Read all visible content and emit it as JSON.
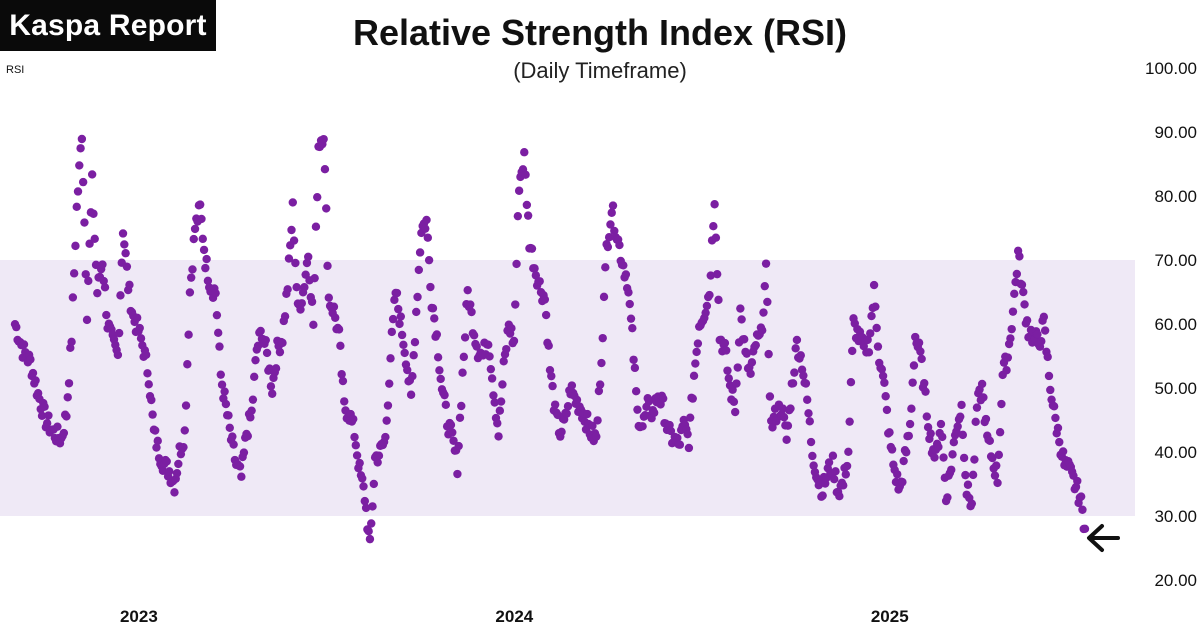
{
  "brand": {
    "label": "Kaspa Report"
  },
  "chart_data": {
    "type": "scatter",
    "title": "Relative Strength Index (RSI)",
    "subtitle": "(Daily Timeframe)",
    "ylabel": "RSI",
    "ylim": [
      20,
      100
    ],
    "yticks": [
      "20.00",
      "30.00",
      "40.00",
      "50.00",
      "60.00",
      "70.00",
      "80.00",
      "90.00",
      "100.00"
    ],
    "x_start_year": 2022.67,
    "x_end_year": 2025.52,
    "xticks": [
      {
        "label": "2023",
        "year": 2023.0
      },
      {
        "label": "2024",
        "year": 2024.0
      },
      {
        "label": "2025",
        "year": 2025.0
      }
    ],
    "band": {
      "low": 30,
      "high": 70,
      "color": "#efe9f6"
    },
    "point_color": "#7b1fa2",
    "annotation": {
      "icon": "arrow-left-icon",
      "points_to": "last-value"
    },
    "series": [
      {
        "name": "RSI",
        "keypoints": [
          [
            0,
            60
          ],
          [
            6,
            56
          ],
          [
            12,
            54
          ],
          [
            18,
            49
          ],
          [
            24,
            45
          ],
          [
            30,
            43
          ],
          [
            36,
            42
          ],
          [
            40,
            46
          ],
          [
            44,
            58
          ],
          [
            48,
            78
          ],
          [
            52,
            90
          ],
          [
            56,
            62
          ],
          [
            60,
            82
          ],
          [
            64,
            65
          ],
          [
            68,
            70
          ],
          [
            72,
            60
          ],
          [
            76,
            57
          ],
          [
            80,
            55
          ],
          [
            84,
            75
          ],
          [
            88,
            66
          ],
          [
            92,
            61
          ],
          [
            96,
            59
          ],
          [
            100,
            56
          ],
          [
            104,
            52
          ],
          [
            108,
            43
          ],
          [
            112,
            40
          ],
          [
            116,
            38
          ],
          [
            120,
            37
          ],
          [
            124,
            35
          ],
          [
            128,
            40
          ],
          [
            132,
            43
          ],
          [
            136,
            65
          ],
          [
            140,
            75
          ],
          [
            144,
            78
          ],
          [
            148,
            70
          ],
          [
            152,
            66
          ],
          [
            156,
            65
          ],
          [
            160,
            52
          ],
          [
            164,
            47
          ],
          [
            168,
            42
          ],
          [
            172,
            38
          ],
          [
            176,
            36
          ],
          [
            180,
            43
          ],
          [
            184,
            46
          ],
          [
            188,
            56
          ],
          [
            192,
            59
          ],
          [
            196,
            55
          ],
          [
            200,
            50
          ],
          [
            204,
            56
          ],
          [
            208,
            58
          ],
          [
            212,
            66
          ],
          [
            216,
            78
          ],
          [
            220,
            62
          ],
          [
            224,
            65
          ],
          [
            228,
            71
          ],
          [
            232,
            60
          ],
          [
            236,
            88
          ],
          [
            240,
            90
          ],
          [
            244,
            64
          ],
          [
            248,
            62
          ],
          [
            252,
            58
          ],
          [
            256,
            47
          ],
          [
            260,
            46
          ],
          [
            264,
            43
          ],
          [
            268,
            37
          ],
          [
            272,
            33
          ],
          [
            276,
            25
          ],
          [
            280,
            39
          ],
          [
            284,
            40
          ],
          [
            288,
            42
          ],
          [
            292,
            55
          ],
          [
            296,
            65
          ],
          [
            300,
            60
          ],
          [
            304,
            55
          ],
          [
            308,
            48
          ],
          [
            312,
            62
          ],
          [
            316,
            75
          ],
          [
            320,
            76
          ],
          [
            324,
            64
          ],
          [
            328,
            58
          ],
          [
            332,
            50
          ],
          [
            336,
            45
          ],
          [
            340,
            42
          ],
          [
            344,
            38
          ],
          [
            348,
            52
          ],
          [
            352,
            65
          ],
          [
            356,
            60
          ],
          [
            360,
            56
          ],
          [
            364,
            55
          ],
          [
            368,
            58
          ],
          [
            372,
            50
          ],
          [
            376,
            43
          ],
          [
            380,
            53
          ],
          [
            384,
            60
          ],
          [
            388,
            57
          ],
          [
            392,
            82
          ],
          [
            396,
            86
          ],
          [
            400,
            73
          ],
          [
            404,
            69
          ],
          [
            408,
            66
          ],
          [
            412,
            64
          ],
          [
            416,
            53
          ],
          [
            420,
            46
          ],
          [
            424,
            43
          ],
          [
            428,
            45
          ],
          [
            432,
            50
          ],
          [
            436,
            48
          ],
          [
            440,
            47
          ],
          [
            444,
            45
          ],
          [
            448,
            43
          ],
          [
            452,
            42
          ],
          [
            456,
            55
          ],
          [
            460,
            72
          ],
          [
            464,
            78
          ],
          [
            468,
            74
          ],
          [
            472,
            70
          ],
          [
            476,
            67
          ],
          [
            480,
            58
          ],
          [
            484,
            46
          ],
          [
            488,
            44
          ],
          [
            492,
            47
          ],
          [
            496,
            46
          ],
          [
            500,
            49
          ],
          [
            504,
            47
          ],
          [
            508,
            43
          ],
          [
            512,
            42
          ],
          [
            516,
            41
          ],
          [
            520,
            44
          ],
          [
            524,
            42
          ],
          [
            528,
            52
          ],
          [
            532,
            60
          ],
          [
            536,
            62
          ],
          [
            540,
            65
          ],
          [
            544,
            80
          ],
          [
            548,
            58
          ],
          [
            552,
            56
          ],
          [
            556,
            50
          ],
          [
            560,
            47
          ],
          [
            564,
            62
          ],
          [
            568,
            55
          ],
          [
            572,
            52
          ],
          [
            576,
            57
          ],
          [
            580,
            58
          ],
          [
            584,
            68
          ],
          [
            588,
            44
          ],
          [
            592,
            46
          ],
          [
            596,
            47
          ],
          [
            600,
            42
          ],
          [
            604,
            50
          ],
          [
            608,
            57
          ],
          [
            612,
            54
          ],
          [
            616,
            48
          ],
          [
            620,
            40
          ],
          [
            624,
            36
          ],
          [
            628,
            34
          ],
          [
            632,
            37
          ],
          [
            636,
            38
          ],
          [
            640,
            34
          ],
          [
            644,
            35
          ],
          [
            648,
            40
          ],
          [
            652,
            60
          ],
          [
            656,
            58
          ],
          [
            660,
            56
          ],
          [
            664,
            57
          ],
          [
            668,
            65
          ],
          [
            672,
            55
          ],
          [
            676,
            50
          ],
          [
            680,
            42
          ],
          [
            684,
            37
          ],
          [
            688,
            34
          ],
          [
            692,
            39
          ],
          [
            696,
            44
          ],
          [
            700,
            58
          ],
          [
            704,
            55
          ],
          [
            708,
            48
          ],
          [
            712,
            42
          ],
          [
            716,
            39
          ],
          [
            720,
            45
          ],
          [
            724,
            33
          ],
          [
            728,
            38
          ],
          [
            732,
            44
          ],
          [
            736,
            47
          ],
          [
            740,
            34
          ],
          [
            744,
            32
          ],
          [
            748,
            47
          ],
          [
            752,
            50
          ],
          [
            756,
            42
          ],
          [
            760,
            39
          ],
          [
            764,
            36
          ],
          [
            768,
            52
          ],
          [
            772,
            55
          ],
          [
            776,
            62
          ],
          [
            780,
            71
          ],
          [
            784,
            64
          ],
          [
            788,
            59
          ],
          [
            792,
            58
          ],
          [
            796,
            57
          ],
          [
            800,
            60
          ],
          [
            804,
            52
          ],
          [
            808,
            46
          ],
          [
            812,
            42
          ],
          [
            816,
            38
          ],
          [
            820,
            37
          ],
          [
            824,
            35
          ],
          [
            828,
            33
          ],
          [
            832,
            28
          ]
        ]
      }
    ]
  }
}
